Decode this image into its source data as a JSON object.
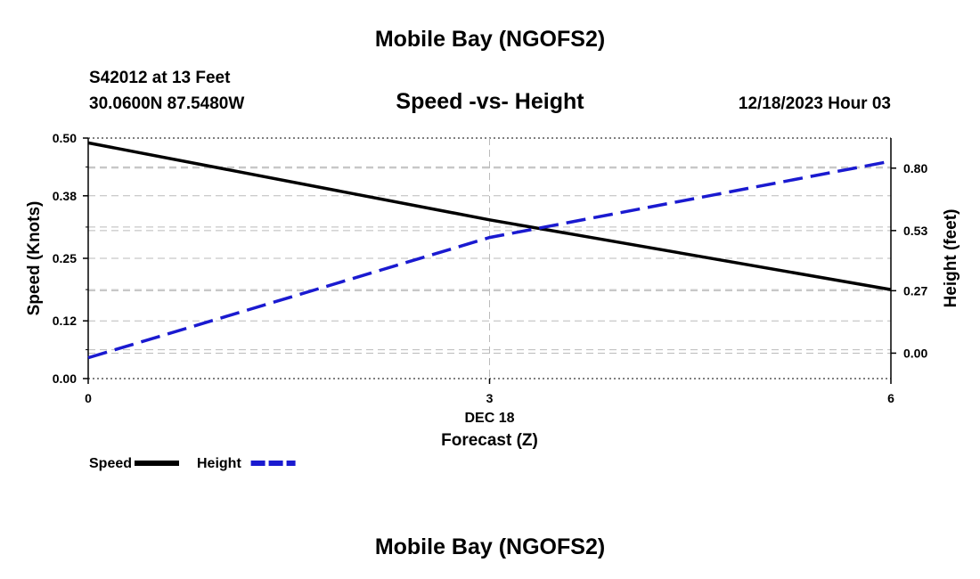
{
  "header": {
    "title": "Mobile Bay (NGOFS2)",
    "station": "S42012 at 13 Feet",
    "coordinates": "30.0600N  87.5480W",
    "chart_title": "Speed -vs- Height",
    "datetime": "12/18/2023 Hour 03"
  },
  "footer": {
    "title": "Mobile Bay (NGOFS2)"
  },
  "colors": {
    "speed": "#000000",
    "height": "#1a1ad0",
    "grid": "#bbbbbb"
  },
  "chart_data": {
    "type": "line",
    "xlabel": "Forecast (Z)",
    "x_date_label": "DEC 18",
    "x_ticks": [
      "0",
      "3",
      "6"
    ],
    "xlim": [
      0,
      6
    ],
    "y_left": {
      "label": "Speed (Knots)",
      "ticks": [
        "0.00",
        "0.12",
        "0.25",
        "0.38",
        "0.50"
      ],
      "ylim": [
        0,
        0.5
      ]
    },
    "y_right": {
      "label": "Height (feet)",
      "ticks": [
        "0.00",
        "0.27",
        "0.53",
        "0.80"
      ],
      "ylim": [
        -0.11,
        0.93
      ]
    },
    "grid": true,
    "legend_placement": "bottom-left",
    "series": [
      {
        "name": "Speed",
        "axis": "left",
        "style": "solid",
        "x": [
          0,
          3,
          6
        ],
        "values": [
          0.49,
          0.33,
          0.185
        ]
      },
      {
        "name": "Height",
        "axis": "right",
        "style": "dashed",
        "x": [
          0,
          3,
          6
        ],
        "values": [
          -0.02,
          0.5,
          0.83
        ]
      }
    ]
  }
}
